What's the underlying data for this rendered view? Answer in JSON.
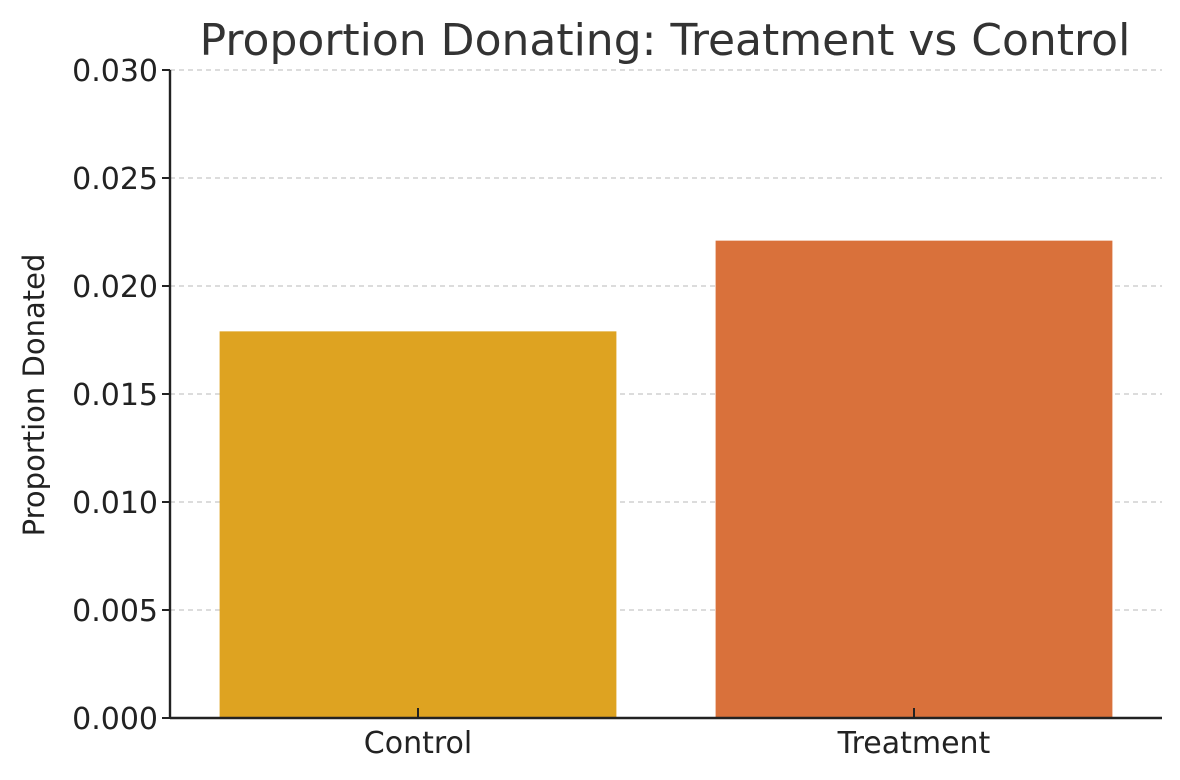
{
  "chart_data": {
    "type": "bar",
    "title": "Proportion Donating: Treatment vs Control",
    "xlabel": "",
    "ylabel": "Proportion Donated",
    "categories": [
      "Control",
      "Treatment"
    ],
    "values": [
      0.0179,
      0.0221
    ],
    "colors": [
      "#DEA321",
      "#D9713B"
    ],
    "ylim": [
      0,
      0.03
    ],
    "yticks": [
      "0.000",
      "0.005",
      "0.010",
      "0.015",
      "0.020",
      "0.025",
      "0.030"
    ],
    "grid": "horizontal dashed",
    "legend": "none"
  }
}
